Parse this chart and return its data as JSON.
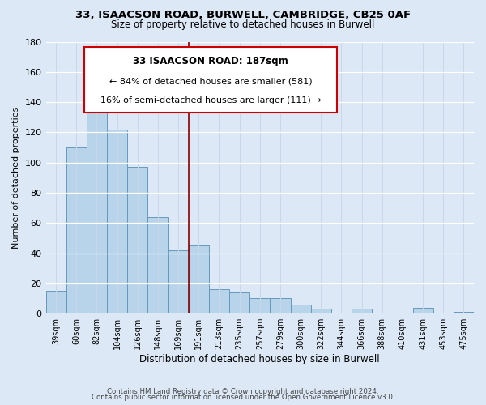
{
  "title1": "33, ISAACSON ROAD, BURWELL, CAMBRIDGE, CB25 0AF",
  "title2": "Size of property relative to detached houses in Burwell",
  "xlabel": "Distribution of detached houses by size in Burwell",
  "ylabel": "Number of detached properties",
  "bar_labels": [
    "39sqm",
    "60sqm",
    "82sqm",
    "104sqm",
    "126sqm",
    "148sqm",
    "169sqm",
    "191sqm",
    "213sqm",
    "235sqm",
    "257sqm",
    "279sqm",
    "300sqm",
    "322sqm",
    "344sqm",
    "366sqm",
    "388sqm",
    "410sqm",
    "431sqm",
    "453sqm",
    "475sqm"
  ],
  "bar_values": [
    15,
    110,
    140,
    122,
    97,
    64,
    42,
    45,
    16,
    14,
    10,
    10,
    6,
    3,
    0,
    3,
    0,
    0,
    4,
    0,
    1
  ],
  "bar_color": "#b8d4ea",
  "bar_edge_color": "#6699bb",
  "reference_line_x": 6.5,
  "reference_label": "33 ISAACSON ROAD: 187sqm",
  "annotation_smaller": "← 84% of detached houses are smaller (581)",
  "annotation_larger": "16% of semi-detached houses are larger (111) →",
  "ylim": [
    0,
    180
  ],
  "yticks": [
    0,
    20,
    40,
    60,
    80,
    100,
    120,
    140,
    160,
    180
  ],
  "footer1": "Contains HM Land Registry data © Crown copyright and database right 2024.",
  "footer2": "Contains public sector information licensed under the Open Government Licence v3.0.",
  "bg_color": "#dce8f5"
}
